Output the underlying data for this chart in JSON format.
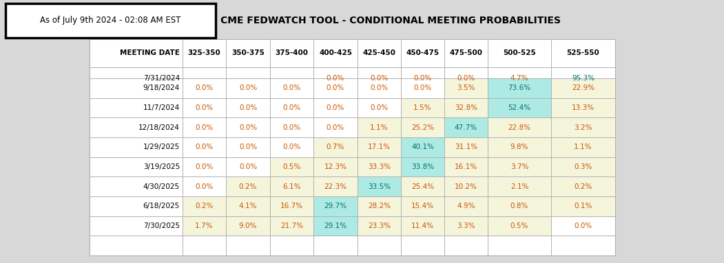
{
  "title": "CME FEDWATCH TOOL - CONDITIONAL MEETING PROBABILITIES",
  "timestamp": "As of July 9th 2024 - 02:08 AM EST",
  "columns": [
    "MEETING DATE",
    "325-350",
    "350-375",
    "375-400",
    "400-425",
    "425-450",
    "450-475",
    "475-500",
    "500-525",
    "525-550"
  ],
  "rows": [
    [
      "7/31/2024",
      "",
      "",
      "",
      "0.0%",
      "0.0%",
      "0.0%",
      "0.0%",
      "4.7%",
      "95.3%"
    ],
    [
      "9/18/2024",
      "0.0%",
      "0.0%",
      "0.0%",
      "0.0%",
      "0.0%",
      "0.0%",
      "3.5%",
      "73.6%",
      "22.9%"
    ],
    [
      "11/7/2024",
      "0.0%",
      "0.0%",
      "0.0%",
      "0.0%",
      "0.0%",
      "1.5%",
      "32.8%",
      "52.4%",
      "13.3%"
    ],
    [
      "12/18/2024",
      "0.0%",
      "0.0%",
      "0.0%",
      "0.0%",
      "1.1%",
      "25.2%",
      "47.7%",
      "22.8%",
      "3.2%"
    ],
    [
      "1/29/2025",
      "0.0%",
      "0.0%",
      "0.0%",
      "0.7%",
      "17.1%",
      "40.1%",
      "31.1%",
      "9.8%",
      "1.1%"
    ],
    [
      "3/19/2025",
      "0.0%",
      "0.0%",
      "0.5%",
      "12.3%",
      "33.3%",
      "33.8%",
      "16.1%",
      "3.7%",
      "0.3%"
    ],
    [
      "4/30/2025",
      "0.0%",
      "0.2%",
      "6.1%",
      "22.3%",
      "33.5%",
      "25.4%",
      "10.2%",
      "2.1%",
      "0.2%"
    ],
    [
      "6/18/2025",
      "0.2%",
      "4.1%",
      "16.7%",
      "29.7%",
      "28.2%",
      "15.4%",
      "4.9%",
      "0.8%",
      "0.1%"
    ],
    [
      "7/30/2025",
      "1.7%",
      "9.0%",
      "21.7%",
      "29.1%",
      "23.3%",
      "11.4%",
      "3.3%",
      "0.5%",
      "0.0%"
    ]
  ],
  "highlight_col": {
    "7/31/2024": 9,
    "9/18/2024": 8,
    "11/7/2024": 8,
    "12/18/2024": 7,
    "1/29/2025": 6,
    "3/19/2025": 6,
    "4/30/2025": 5,
    "6/18/2025": 4,
    "7/30/2025": 4
  },
  "bg_color": "#d8d8d8",
  "table_bg": "#ffffff",
  "highlight_cyan": "#aeeae4",
  "highlight_yellow": "#f5f5dc",
  "border_color": "#b0b0b0",
  "text_color_dark": "#1a1a1a",
  "text_color_orange": "#cc5500",
  "text_color_teal": "#007070",
  "header_font_size": 7.5,
  "cell_font_size": 7.5,
  "title_font_size": 10.0,
  "timestamp_font_size": 8.5
}
